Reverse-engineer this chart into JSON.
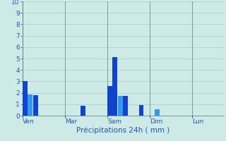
{
  "xlabel": "Précipitations 24h ( mm )",
  "ylim": [
    0,
    10
  ],
  "background_color": "#ceeae6",
  "grid_color": "#a8ccc8",
  "separator_color": "#7a9a98",
  "bar_positions": [
    0,
    1,
    2,
    11,
    16,
    17,
    18,
    19,
    22,
    25
  ],
  "bar_heights": [
    3.0,
    1.85,
    1.8,
    0.85,
    2.6,
    5.1,
    1.75,
    1.75,
    0.9,
    0.55
  ],
  "bar_colors": [
    "#1144cc",
    "#3399ee",
    "#1144cc",
    "#1144cc",
    "#1144cc",
    "#1144cc",
    "#3399ee",
    "#1144cc",
    "#1144cc",
    "#3399ee"
  ],
  "day_ticks": [
    0,
    8,
    16,
    24,
    32
  ],
  "day_labels": [
    "Ven",
    "Mar",
    "Sam",
    "Dim",
    "Lun"
  ],
  "xlim": [
    0,
    38
  ],
  "yticks": [
    0,
    1,
    2,
    3,
    4,
    5,
    6,
    7,
    8,
    9,
    10
  ],
  "xlabel_color": "#2255bb",
  "tick_label_color": "#2255bb",
  "xlabel_fontsize": 7.5,
  "ytick_fontsize": 6.5,
  "xtick_fontsize": 6.5
}
